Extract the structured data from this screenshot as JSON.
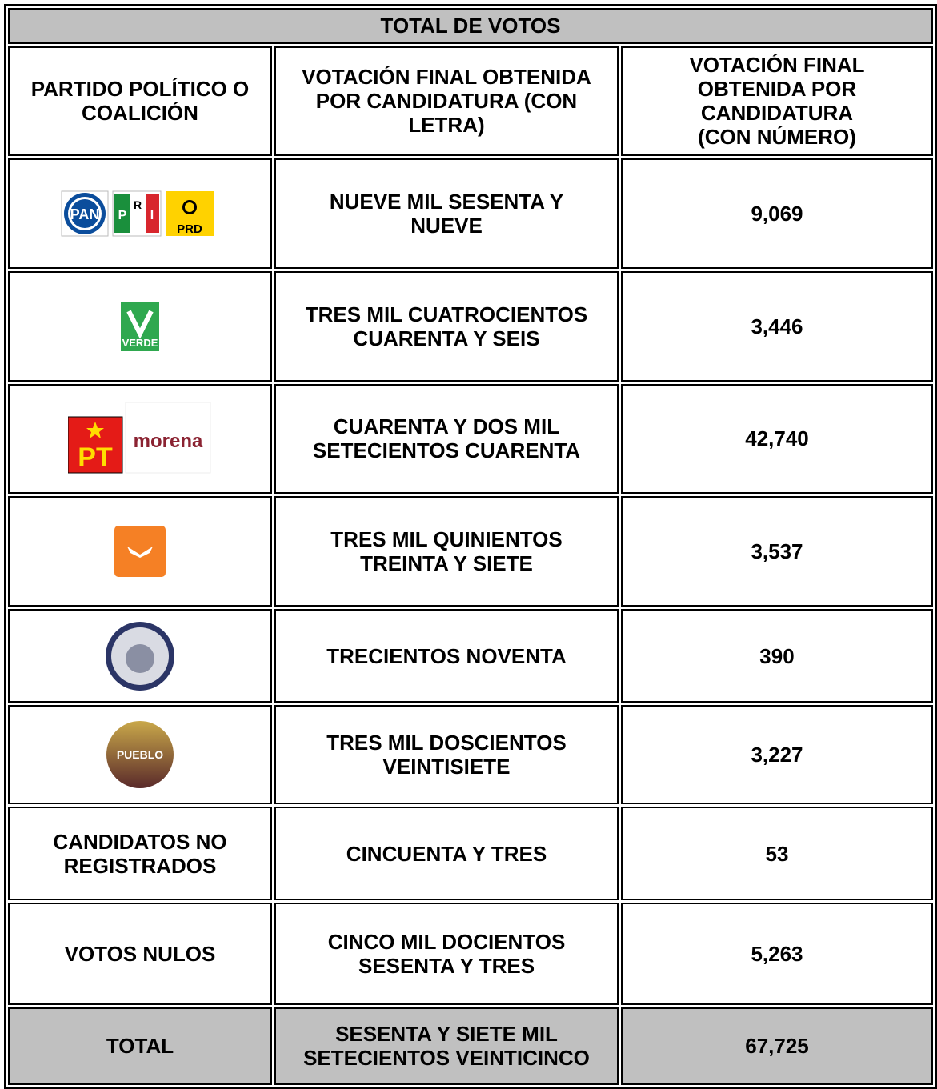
{
  "table": {
    "title": "TOTAL DE VOTOS",
    "headers": [
      "PARTIDO POLÍTICO O COALICIÓN",
      "VOTACIÓN FINAL OBTENIDA POR CANDIDATURA (CON LETRA)",
      "VOTACIÓN FINAL OBTENIDA POR CANDIDATURA (CON NÚMERO)"
    ],
    "rows": [
      {
        "logos": [
          "PAN",
          "P",
          "R",
          "I",
          "PRD"
        ],
        "letters": "NUEVE MIL SESENTA Y NUEVE",
        "number": "9,069"
      },
      {
        "logos": [
          "VERDE"
        ],
        "letters": "TRES MIL CUATROCIENTOS CUARENTA Y SEIS",
        "number": "3,446"
      },
      {
        "logos": [
          "PT",
          "morena"
        ],
        "letters": "CUARENTA Y DOS MIL SETECIENTOS CUARENTA",
        "number": "42,740"
      },
      {
        "logos": [],
        "letters": "TRES MIL QUINIENTOS TREINTA Y SIETE",
        "number": "3,537"
      },
      {
        "logos": [],
        "letters": "TRECIENTOS NOVENTA",
        "number": "390"
      },
      {
        "logos": [
          "PUEBLO"
        ],
        "letters": "TRES MIL DOSCIENTOS VEINTISIETE",
        "number": "3,227"
      },
      {
        "party": "CANDIDATOS NO REGISTRADOS",
        "letters": "CINCUENTA Y TRES",
        "number": "53"
      },
      {
        "party": "VOTOS NULOS",
        "letters": "CINCO MIL DOCIENTOS SESENTA Y TRES",
        "number": "5,263"
      }
    ],
    "total": {
      "party": "TOTAL",
      "letters": "SESENTA Y SIETE MIL SETECIENTOS VEINTICINCO",
      "number": "67,725"
    }
  }
}
